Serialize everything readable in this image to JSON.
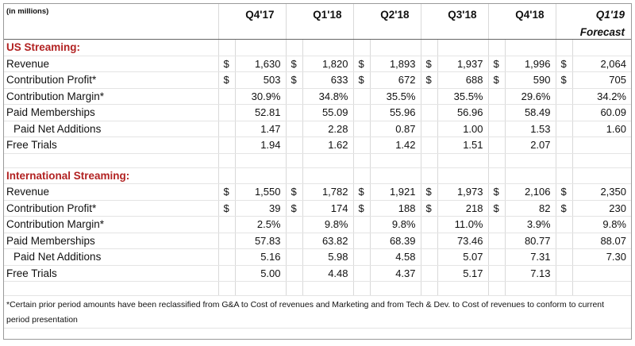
{
  "units_label": "(in millions)",
  "columns": [
    "Q4'17",
    "Q1'18",
    "Q2'18",
    "Q3'18",
    "Q4'18",
    "Q1'19"
  ],
  "forecast_label": "Forecast",
  "currency_symbol": "$",
  "sections": [
    {
      "title": "US Streaming:",
      "rows": [
        {
          "label": "Revenue",
          "values": [
            "1,630",
            "1,820",
            "1,893",
            "1,937",
            "1,996",
            "2,064"
          ],
          "currency": true,
          "indent": false
        },
        {
          "label": "Contribution Profit*",
          "values": [
            "503",
            "633",
            "672",
            "688",
            "590",
            "705"
          ],
          "currency": true,
          "indent": false
        },
        {
          "label": "Contribution Margin*",
          "values": [
            "30.9%",
            "34.8%",
            "35.5%",
            "35.5%",
            "29.6%",
            "34.2%"
          ],
          "currency": false,
          "indent": false
        },
        {
          "label": "Paid Memberships",
          "values": [
            "52.81",
            "55.09",
            "55.96",
            "56.96",
            "58.49",
            "60.09"
          ],
          "currency": false,
          "indent": false
        },
        {
          "label": "Paid Net Additions",
          "values": [
            "1.47",
            "2.28",
            "0.87",
            "1.00",
            "1.53",
            "1.60"
          ],
          "currency": false,
          "indent": true
        },
        {
          "label": "Free Trials",
          "values": [
            "1.94",
            "1.62",
            "1.42",
            "1.51",
            "2.07",
            ""
          ],
          "currency": false,
          "indent": false
        }
      ]
    },
    {
      "title": "International Streaming:",
      "rows": [
        {
          "label": "Revenue",
          "values": [
            "1,550",
            "1,782",
            "1,921",
            "1,973",
            "2,106",
            "2,350"
          ],
          "currency": true,
          "indent": false
        },
        {
          "label": "Contribution Profit*",
          "values": [
            "39",
            "174",
            "188",
            "218",
            "82",
            "230"
          ],
          "currency": true,
          "indent": false
        },
        {
          "label": "Contribution Margin*",
          "values": [
            "2.5%",
            "9.8%",
            "9.8%",
            "11.0%",
            "3.9%",
            "9.8%"
          ],
          "currency": false,
          "indent": false
        },
        {
          "label": "Paid Memberships",
          "values": [
            "57.83",
            "63.82",
            "68.39",
            "73.46",
            "80.77",
            "88.07"
          ],
          "currency": false,
          "indent": false
        },
        {
          "label": "Paid Net Additions",
          "values": [
            "5.16",
            "5.98",
            "4.58",
            "5.07",
            "7.31",
            "7.30"
          ],
          "currency": false,
          "indent": true
        },
        {
          "label": "Free Trials",
          "values": [
            "5.00",
            "4.48",
            "4.37",
            "5.17",
            "7.13",
            ""
          ],
          "currency": false,
          "indent": false
        }
      ]
    }
  ],
  "footnote": "*Certain prior period amounts have been reclassified from G&A to Cost of revenues and Marketing and from Tech & Dev. to Cost of revenues to conform to current period presentation"
}
